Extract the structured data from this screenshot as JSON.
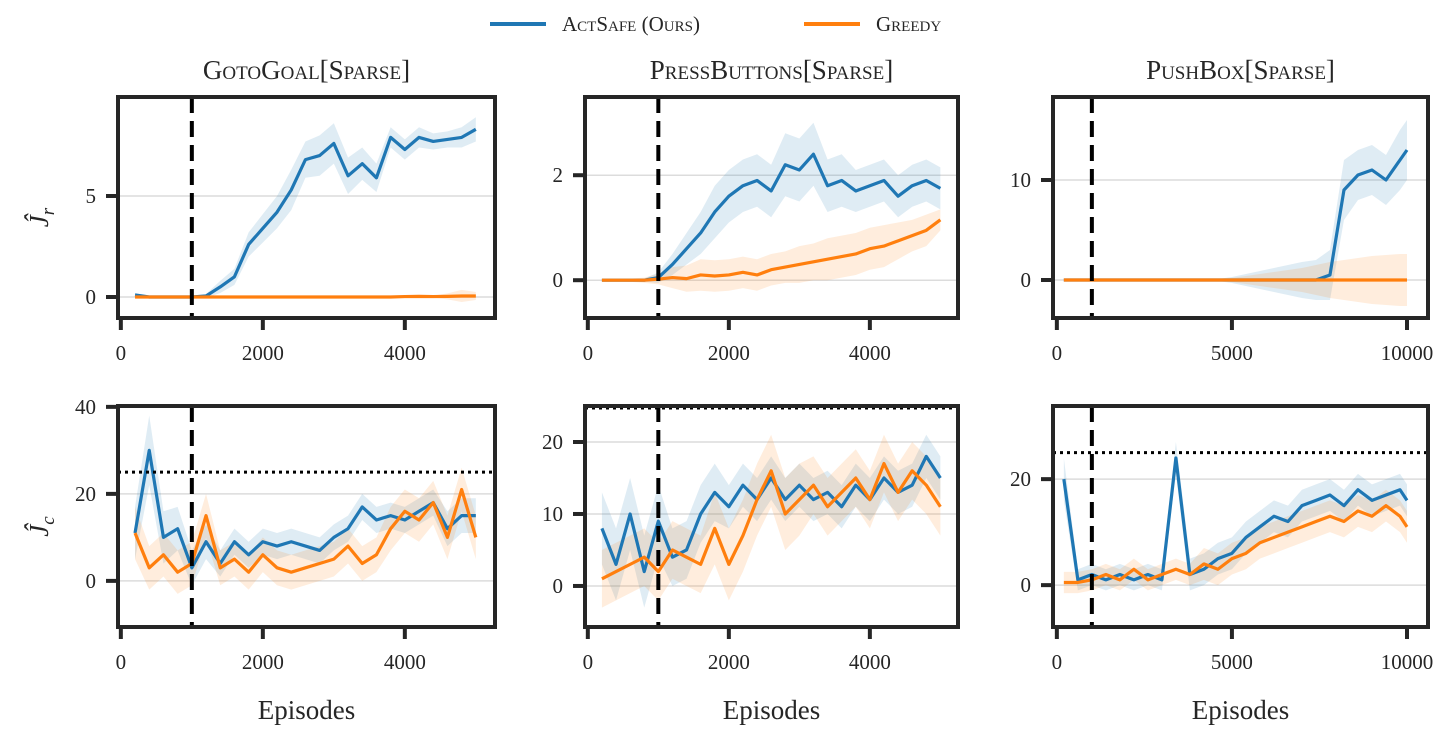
{
  "legend": {
    "items": [
      {
        "label": "ActSafe (Ours)",
        "color": "#1f77b4"
      },
      {
        "label": "Greedy",
        "color": "#ff7f0e"
      }
    ],
    "placement": "top-center"
  },
  "chart_data": [
    {
      "type": "line",
      "row": "reward",
      "title": "GotoGoal[Sparse]",
      "ylabel": "Ĵ",
      "ylabel_sub": "r",
      "xlabel": "",
      "xlim": [
        -40,
        5270
      ],
      "ylim": [
        -1.04,
        9.9
      ],
      "xticks": [
        0,
        2000,
        4000
      ],
      "yticks": [
        0,
        5
      ],
      "grid": true,
      "vline": 1000,
      "threshold": null,
      "x": [
        200,
        400,
        600,
        800,
        1000,
        1200,
        1400,
        1600,
        1800,
        2000,
        2200,
        2400,
        2600,
        2800,
        3000,
        3200,
        3400,
        3600,
        3800,
        4000,
        4200,
        4400,
        4600,
        4800,
        5000
      ],
      "series": [
        {
          "name": "ActSafe (Ours)",
          "color": "#1f77b4",
          "values": [
            0.1,
            0,
            0,
            0,
            0,
            0.05,
            0.5,
            1.0,
            2.6,
            3.4,
            4.2,
            5.3,
            6.8,
            7.0,
            7.6,
            6.0,
            6.6,
            5.9,
            7.9,
            7.3,
            7.9,
            7.7,
            7.8,
            7.9,
            8.3
          ],
          "std": [
            0.1,
            0.05,
            0.05,
            0.05,
            0.05,
            0.1,
            0.3,
            0.4,
            0.6,
            0.7,
            0.8,
            1.0,
            0.9,
            1.0,
            1.0,
            0.9,
            0.8,
            0.7,
            0.5,
            0.5,
            0.5,
            0.4,
            0.4,
            0.5,
            0.6
          ]
        },
        {
          "name": "Greedy",
          "color": "#ff7f0e",
          "values": [
            0,
            0,
            0,
            0,
            0,
            0,
            0,
            0,
            0,
            0,
            0,
            0,
            0,
            0,
            0,
            0,
            0,
            0,
            0,
            0.02,
            0.03,
            0.02,
            0.03,
            0.05,
            0.05
          ],
          "std": [
            0.02,
            0.02,
            0.02,
            0.02,
            0.02,
            0.02,
            0.02,
            0.02,
            0.02,
            0.02,
            0.02,
            0.02,
            0.02,
            0.02,
            0.02,
            0.02,
            0.02,
            0.02,
            0.03,
            0.05,
            0.06,
            0.05,
            0.15,
            0.3,
            0.2
          ]
        }
      ]
    },
    {
      "type": "line",
      "row": "reward",
      "title": "PressButtons[Sparse]",
      "ylabel": "",
      "xlabel": "",
      "xlim": [
        -40,
        5250
      ],
      "ylim": [
        -0.72,
        3.49
      ],
      "xticks": [
        0,
        2000,
        4000
      ],
      "yticks": [
        0,
        2
      ],
      "grid": true,
      "vline": 1000,
      "threshold": null,
      "x": [
        200,
        400,
        600,
        800,
        1000,
        1200,
        1400,
        1600,
        1800,
        2000,
        2200,
        2400,
        2600,
        2800,
        3000,
        3200,
        3400,
        3600,
        3800,
        4000,
        4200,
        4400,
        4600,
        4800,
        5000
      ],
      "series": [
        {
          "name": "ActSafe (Ours)",
          "color": "#1f77b4",
          "values": [
            0,
            0,
            0,
            0,
            0.05,
            0.3,
            0.6,
            0.9,
            1.3,
            1.6,
            1.8,
            1.9,
            1.7,
            2.2,
            2.1,
            2.4,
            1.8,
            1.9,
            1.7,
            1.8,
            1.9,
            1.6,
            1.8,
            1.9,
            1.75
          ],
          "std": [
            0.02,
            0.02,
            0.02,
            0.03,
            0.1,
            0.2,
            0.3,
            0.4,
            0.5,
            0.5,
            0.5,
            0.5,
            0.5,
            0.6,
            0.6,
            0.6,
            0.5,
            0.5,
            0.4,
            0.4,
            0.4,
            0.4,
            0.4,
            0.4,
            0.4
          ]
        },
        {
          "name": "Greedy",
          "color": "#ff7f0e",
          "values": [
            0,
            0,
            0,
            0,
            0.02,
            0.05,
            0.03,
            0.1,
            0.08,
            0.1,
            0.15,
            0.1,
            0.2,
            0.25,
            0.3,
            0.35,
            0.4,
            0.45,
            0.5,
            0.6,
            0.65,
            0.75,
            0.85,
            0.95,
            1.15
          ],
          "std": [
            0.02,
            0.02,
            0.03,
            0.05,
            0.1,
            0.2,
            0.25,
            0.3,
            0.3,
            0.3,
            0.3,
            0.3,
            0.3,
            0.3,
            0.35,
            0.35,
            0.4,
            0.4,
            0.4,
            0.4,
            0.4,
            0.35,
            0.3,
            0.3,
            0.2
          ]
        }
      ]
    },
    {
      "type": "line",
      "row": "reward",
      "title": "PushBox[Sparse]",
      "ylabel": "",
      "xlabel": "",
      "xlim": [
        -110,
        10600
      ],
      "ylim": [
        -3.8,
        18.3
      ],
      "xticks": [
        0,
        5000,
        10000
      ],
      "yticks": [
        0,
        10
      ],
      "grid": true,
      "vline": 1000,
      "threshold": null,
      "x": [
        200,
        600,
        1000,
        1400,
        1800,
        2200,
        2600,
        3000,
        3400,
        3800,
        4200,
        4600,
        5000,
        5400,
        5800,
        6200,
        6600,
        7000,
        7400,
        7800,
        8200,
        8600,
        9000,
        9400,
        9800,
        10000
      ],
      "series": [
        {
          "name": "ActSafe (Ours)",
          "color": "#1f77b4",
          "values": [
            0,
            0,
            0,
            0,
            0,
            0,
            0,
            0,
            0,
            0,
            0,
            0,
            0,
            0,
            0,
            0,
            0,
            0,
            0,
            0.5,
            9,
            10.5,
            11,
            10,
            12,
            13
          ],
          "std": [
            0.05,
            0.05,
            0.05,
            0.05,
            0.05,
            0.05,
            0.05,
            0.05,
            0.05,
            0.05,
            0.05,
            0.1,
            0.3,
            0.6,
            0.9,
            1.2,
            1.5,
            1.8,
            2.0,
            2.5,
            3,
            2.5,
            2.5,
            2.5,
            3,
            3
          ]
        },
        {
          "name": "Greedy",
          "color": "#ff7f0e",
          "values": [
            0,
            0,
            0,
            0,
            0,
            0,
            0,
            0,
            0,
            0,
            0,
            0,
            0,
            0,
            0,
            0,
            0,
            0,
            0,
            0,
            0,
            0,
            0,
            0,
            0,
            0
          ],
          "std": [
            0.05,
            0.05,
            0.05,
            0.05,
            0.05,
            0.05,
            0.05,
            0.05,
            0.05,
            0.05,
            0.05,
            0.1,
            0.2,
            0.4,
            0.6,
            0.8,
            1.0,
            1.2,
            1.5,
            1.8,
            2.0,
            2.2,
            2.4,
            2.5,
            2.6,
            2.6
          ]
        }
      ]
    },
    {
      "type": "line",
      "row": "cost",
      "title": "",
      "ylabel": "Ĵ",
      "ylabel_sub": "c",
      "xlabel": "Episodes",
      "xlim": [
        -40,
        5270
      ],
      "ylim": [
        -10.6,
        40.2
      ],
      "xticks": [
        0,
        2000,
        4000
      ],
      "yticks": [
        0,
        20,
        40
      ],
      "grid": true,
      "vline": 1000,
      "threshold": 25,
      "x": [
        200,
        400,
        600,
        800,
        1000,
        1200,
        1400,
        1600,
        1800,
        2000,
        2200,
        2400,
        2600,
        2800,
        3000,
        3200,
        3400,
        3600,
        3800,
        4000,
        4200,
        4400,
        4600,
        4800,
        5000
      ],
      "series": [
        {
          "name": "ActSafe (Ours)",
          "color": "#1f77b4",
          "values": [
            11,
            30,
            10,
            12,
            3,
            9,
            4,
            9,
            6,
            9,
            8,
            9,
            8,
            7,
            10,
            12,
            17,
            14,
            15,
            14,
            16,
            18,
            12,
            15,
            15
          ],
          "std": [
            6,
            8,
            6,
            5,
            4,
            4,
            3,
            3,
            3,
            3,
            3,
            3,
            3,
            3,
            3,
            3,
            3,
            3,
            3,
            3,
            3,
            3,
            4,
            4,
            4
          ]
        },
        {
          "name": "Greedy",
          "color": "#ff7f0e",
          "values": [
            11,
            3,
            6,
            2,
            4,
            15,
            3,
            5,
            2,
            6,
            3,
            2,
            3,
            4,
            5,
            8,
            4,
            6,
            12,
            16,
            14,
            18,
            10,
            21,
            10
          ],
          "std": [
            6,
            5,
            5,
            5,
            5,
            5,
            4,
            4,
            4,
            4,
            4,
            4,
            4,
            4,
            4,
            4,
            4,
            4,
            5,
            5,
            5,
            5,
            5,
            5,
            5
          ]
        }
      ]
    },
    {
      "type": "line",
      "row": "cost",
      "title": "",
      "ylabel": "",
      "xlabel": "Episodes",
      "xlim": [
        -40,
        5250
      ],
      "ylim": [
        -5.7,
        25
      ],
      "xticks": [
        0,
        2000,
        4000
      ],
      "yticks": [
        0,
        10,
        20
      ],
      "grid": true,
      "vline": 1000,
      "threshold": 25,
      "x": [
        200,
        400,
        600,
        800,
        1000,
        1200,
        1400,
        1600,
        1800,
        2000,
        2200,
        2400,
        2600,
        2800,
        3000,
        3200,
        3400,
        3600,
        3800,
        4000,
        4200,
        4400,
        4600,
        4800,
        5000
      ],
      "series": [
        {
          "name": "ActSafe (Ours)",
          "color": "#1f77b4",
          "values": [
            8,
            3,
            10,
            2,
            9,
            4,
            5,
            10,
            13,
            11,
            14,
            12,
            15,
            12,
            14,
            12,
            13,
            11,
            14,
            12,
            15,
            13,
            14,
            18,
            15
          ],
          "std": [
            5,
            5,
            5,
            5,
            5,
            4,
            4,
            4,
            4,
            3,
            3,
            3,
            3,
            3,
            3,
            3,
            3,
            3,
            3,
            3,
            3,
            3,
            3,
            3,
            3
          ]
        },
        {
          "name": "Greedy",
          "color": "#ff7f0e",
          "values": [
            1,
            2,
            3,
            4,
            2,
            5,
            4,
            3,
            8,
            3,
            7,
            12,
            16,
            10,
            12,
            14,
            11,
            13,
            15,
            12,
            17,
            13,
            16,
            14,
            11
          ],
          "std": [
            4,
            4,
            4,
            4,
            4,
            4,
            4,
            4,
            5,
            5,
            5,
            5,
            5,
            5,
            5,
            4,
            4,
            4,
            4,
            4,
            4,
            4,
            4,
            4,
            4
          ]
        }
      ]
    },
    {
      "type": "line",
      "row": "cost",
      "title": "",
      "ylabel": "",
      "xlabel": "Episodes",
      "xlim": [
        -110,
        10600
      ],
      "ylim": [
        -7.9,
        33.8
      ],
      "xticks": [
        0,
        5000,
        10000
      ],
      "yticks": [
        0,
        20
      ],
      "grid": true,
      "vline": 1000,
      "threshold": 25,
      "x": [
        200,
        600,
        1000,
        1400,
        1800,
        2200,
        2600,
        3000,
        3400,
        3800,
        4200,
        4600,
        5000,
        5400,
        5800,
        6200,
        6600,
        7000,
        7400,
        7800,
        8200,
        8600,
        9000,
        9400,
        9800,
        10000
      ],
      "series": [
        {
          "name": "ActSafe (Ours)",
          "color": "#1f77b4",
          "values": [
            20,
            1,
            2,
            1,
            2,
            1,
            2,
            1,
            24,
            2,
            3,
            5,
            6,
            9,
            11,
            13,
            12,
            15,
            16,
            17,
            15,
            18,
            16,
            17,
            18,
            16
          ],
          "std": [
            4,
            2,
            2,
            2,
            2,
            2,
            2,
            2,
            3,
            3,
            3,
            3,
            3,
            3,
            3,
            3,
            3,
            3,
            3,
            3,
            3,
            3,
            3,
            3,
            3,
            3
          ]
        },
        {
          "name": "Greedy",
          "color": "#ff7f0e",
          "values": [
            0.5,
            0.5,
            1,
            2,
            1,
            3,
            1,
            2,
            3,
            2,
            4,
            3,
            5,
            6,
            8,
            9,
            10,
            11,
            12,
            13,
            12,
            14,
            13,
            15,
            13,
            11
          ],
          "std": [
            2,
            2,
            2,
            2,
            2,
            2,
            2,
            2,
            2,
            2,
            3,
            3,
            3,
            3,
            3,
            3,
            3,
            3,
            3,
            3,
            3,
            3,
            3,
            3,
            3,
            3
          ]
        }
      ]
    }
  ]
}
